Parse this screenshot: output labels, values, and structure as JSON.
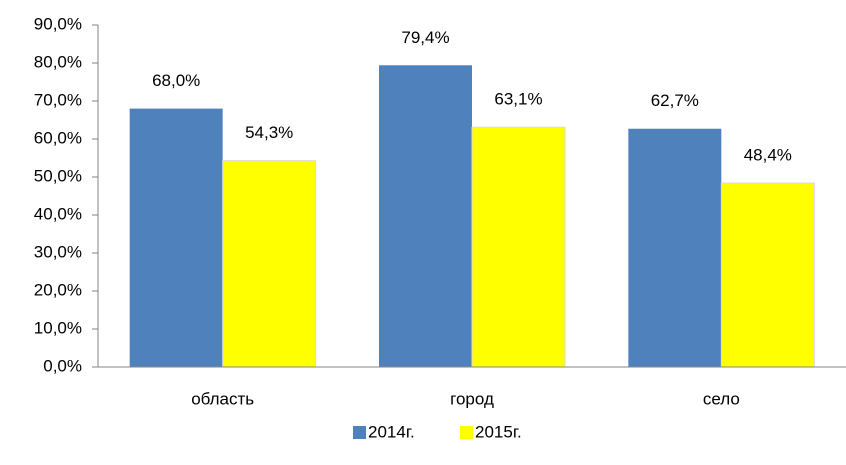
{
  "chart_data": {
    "type": "bar",
    "categories": [
      "область",
      "город",
      "село"
    ],
    "series": [
      {
        "name": "2014г.",
        "color": "#4f81bd",
        "values": [
          68.0,
          79.4,
          62.7
        ],
        "value_labels": [
          "68,0%",
          "79,4%",
          "62,7%"
        ]
      },
      {
        "name": "2015г.",
        "color": "#ffff00",
        "values": [
          54.3,
          63.1,
          48.4
        ],
        "value_labels": [
          "54,3%",
          "63,1%",
          "48,4%"
        ]
      }
    ],
    "ylim": [
      0,
      90
    ],
    "yticks": [
      {
        "value": 0,
        "label": "0,0%"
      },
      {
        "value": 10,
        "label": "10,0%"
      },
      {
        "value": 20,
        "label": "20,0%"
      },
      {
        "value": 30,
        "label": "30,0%"
      },
      {
        "value": 40,
        "label": "40,0%"
      },
      {
        "value": 50,
        "label": "50,0%"
      },
      {
        "value": 60,
        "label": "60,0%"
      },
      {
        "value": 70,
        "label": "70,0%"
      },
      {
        "value": 80,
        "label": "80,0%"
      },
      {
        "value": 90,
        "label": "90,0%"
      }
    ],
    "grid": false,
    "legend": "bottom"
  }
}
